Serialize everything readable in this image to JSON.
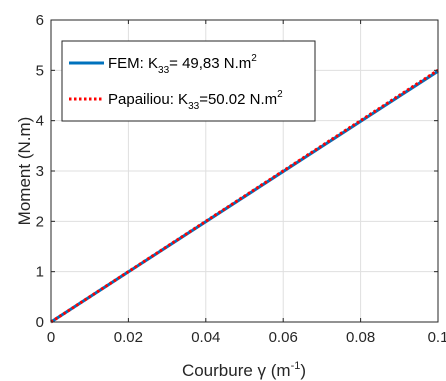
{
  "chart_data": {
    "type": "line",
    "title": "",
    "xlabel": "Courbure γ (m",
    "xlabel_sup": "-1",
    "xlabel_end": ")",
    "ylabel": "Moment (N.m)",
    "xlim": [
      0,
      0.1
    ],
    "ylim": [
      0,
      6
    ],
    "xticks": [
      0,
      0.02,
      0.04,
      0.06,
      0.08,
      0.1
    ],
    "xtick_labels": [
      "0",
      "0.02",
      "0.04",
      "0.06",
      "0.08",
      "0.1"
    ],
    "yticks": [
      0,
      1,
      2,
      3,
      4,
      5,
      6
    ],
    "ytick_labels": [
      "0",
      "1",
      "2",
      "3",
      "4",
      "5",
      "6"
    ],
    "grid": true,
    "legend_position": "top-left",
    "series": [
      {
        "name": "FEM: K33= 49,83 N.m2",
        "legend_parts": {
          "pre": "FEM: K",
          "sub": "33",
          "mid": "= 49,83 N.m",
          "sup": "2"
        },
        "color": "#0072BD",
        "style": "solid",
        "x": [
          0,
          0.1
        ],
        "y": [
          0,
          4.983
        ]
      },
      {
        "name": "Papailiou: K33=50.02 N.m2",
        "legend_parts": {
          "pre": "Papailiou: K",
          "sub": "33",
          "mid": "=50.02 N.m",
          "sup": "2"
        },
        "color": "#FF0000",
        "style": "dotted",
        "x": [
          0,
          0.1
        ],
        "y": [
          0,
          5.002
        ]
      }
    ]
  }
}
